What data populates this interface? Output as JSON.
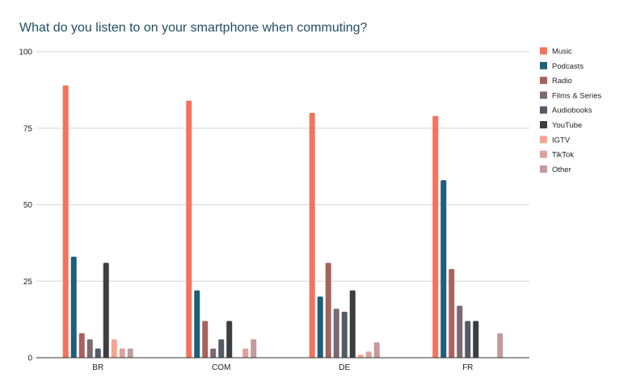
{
  "chart_data": {
    "type": "bar",
    "title": "What do you listen to on your smartphone when commuting?",
    "xlabel": "",
    "ylabel": "",
    "ylim": [
      0,
      100
    ],
    "yticks": [
      0,
      25,
      50,
      75,
      100
    ],
    "grid": true,
    "legend_position": "right",
    "categories": [
      "BR",
      "COM",
      "DE",
      "FR"
    ],
    "series": [
      {
        "name": "Music",
        "color": "#f4735e",
        "values": [
          89,
          84,
          80,
          79
        ]
      },
      {
        "name": "Podcasts",
        "color": "#1e5f7a",
        "values": [
          33,
          22,
          20,
          58
        ]
      },
      {
        "name": "Radio",
        "color": "#a8625e",
        "values": [
          8,
          12,
          31,
          29
        ]
      },
      {
        "name": "Films & Series",
        "color": "#7d6a70",
        "values": [
          6,
          3,
          16,
          17
        ]
      },
      {
        "name": "Audiobooks",
        "color": "#545b66",
        "values": [
          3,
          6,
          15,
          12
        ]
      },
      {
        "name": "YouTube",
        "color": "#3c3e42",
        "values": [
          31,
          12,
          22,
          12
        ]
      },
      {
        "name": "IGTV",
        "color": "#f8a391",
        "values": [
          6,
          0,
          1,
          0
        ]
      },
      {
        "name": "TikTok",
        "color": "#e0a19c",
        "values": [
          3,
          3,
          2,
          0
        ]
      },
      {
        "name": "Other",
        "color": "#c49a9a",
        "values": [
          3,
          6,
          5,
          8
        ]
      }
    ]
  }
}
